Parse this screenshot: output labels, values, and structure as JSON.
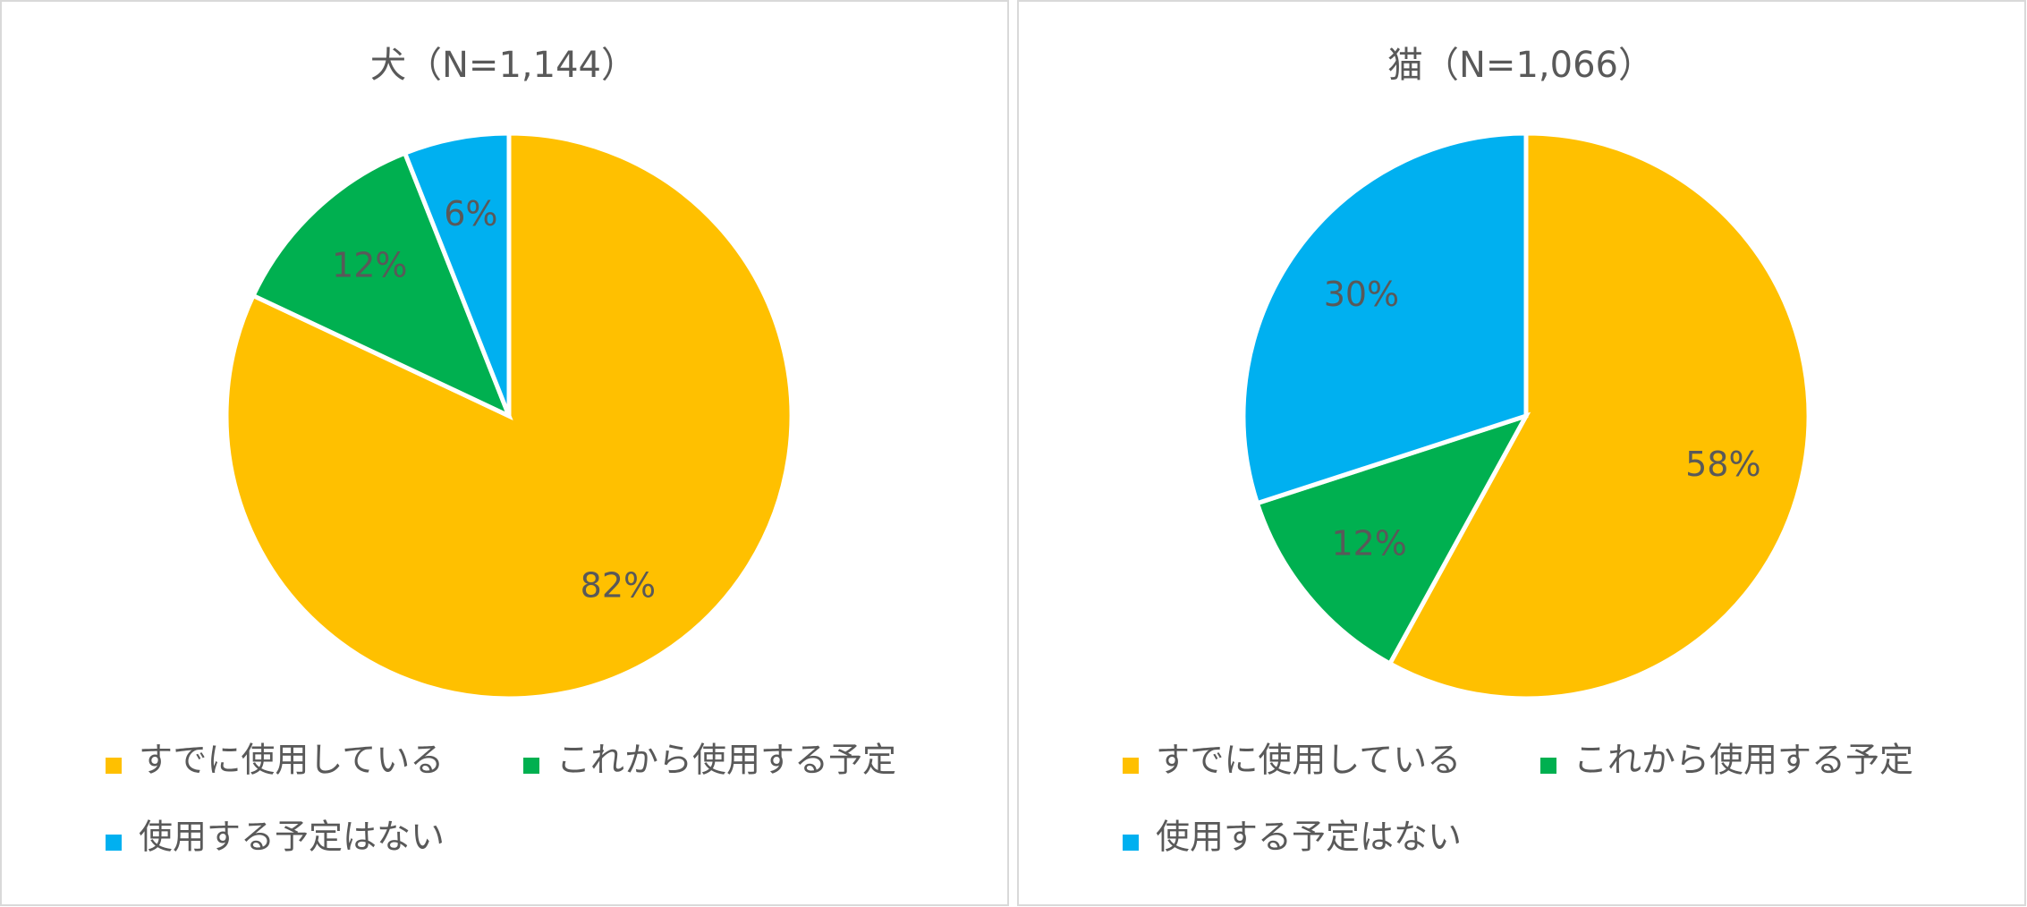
{
  "chart_data": [
    {
      "type": "pie",
      "title": "犬（N=1,144）",
      "categories": [
        "すでに使用している",
        "これから使用する予定",
        "使用する予定はない"
      ],
      "values": [
        82,
        12,
        6
      ],
      "value_labels": [
        "82%",
        "12%",
        "6%"
      ],
      "colors": [
        "#FFC000",
        "#00B050",
        "#00B0F0"
      ]
    },
    {
      "type": "pie",
      "title": "猫（N=1,066）",
      "categories": [
        "すでに使用している",
        "これから使用する予定",
        "使用する予定はない"
      ],
      "values": [
        58,
        12,
        30
      ],
      "value_labels": [
        "58%",
        "12%",
        "30%"
      ],
      "colors": [
        "#FFC000",
        "#00B050",
        "#00B0F0"
      ]
    }
  ]
}
